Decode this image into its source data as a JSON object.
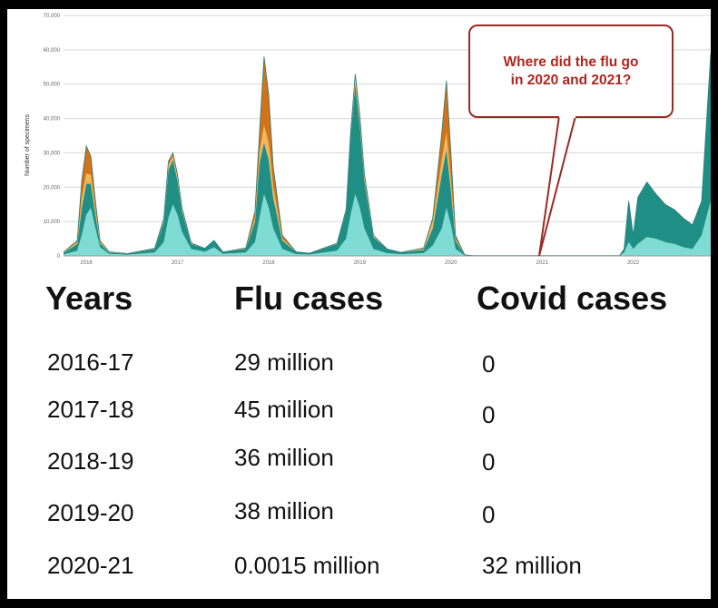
{
  "chart_data": {
    "type": "area",
    "ylabel": "Number of specimens",
    "y_ticks": [
      "70,000",
      "60,000",
      "50,000",
      "40,000",
      "30,000",
      "20,000",
      "10,000",
      "0"
    ],
    "ylim": [
      0,
      70000
    ],
    "x_ticks": [
      "2016",
      "2017",
      "2018",
      "2019",
      "2020",
      "2021",
      "2022"
    ],
    "xlim": [
      2015.8,
      2022.9
    ],
    "grid": true,
    "stacked": true,
    "colors": [
      "#7fdcd4",
      "#1f8f86",
      "#f0b85a",
      "#d47218"
    ],
    "series": [
      {
        "x": [
          2015.8,
          2015.95,
          2016.0,
          2016.05,
          2016.1,
          2016.15,
          2016.2,
          2016.3,
          2016.5,
          2016.8,
          2016.9,
          2016.95,
          2017.0,
          2017.05,
          2017.1,
          2017.2,
          2017.35,
          2017.45,
          2017.55,
          2017.8,
          2017.9,
          2017.95,
          2018.0,
          2018.05,
          2018.1,
          2018.2,
          2018.35,
          2018.5,
          2018.8,
          2018.9,
          2018.95,
          2019.0,
          2019.05,
          2019.1,
          2019.2,
          2019.35,
          2019.5,
          2019.75,
          2019.85,
          2019.95,
          2020.0,
          2020.05,
          2020.1,
          2020.2,
          2020.3,
          2021.9,
          2021.95,
          2022.0,
          2022.05,
          2022.1,
          2022.2,
          2022.3,
          2022.4,
          2022.5,
          2022.6,
          2022.7,
          2022.8,
          2022.9
        ],
        "y": [
          400,
          1500,
          6000,
          12000,
          14000,
          8000,
          2500,
          600,
          350,
          1000,
          4000,
          11000,
          15000,
          12000,
          7000,
          2000,
          1200,
          2500,
          600,
          1000,
          4000,
          11000,
          18000,
          14000,
          8000,
          2000,
          500,
          400,
          1500,
          5000,
          12000,
          18000,
          14000,
          8000,
          2000,
          800,
          500,
          800,
          3000,
          8000,
          14000,
          9000,
          2000,
          150,
          50,
          50,
          1000,
          4000,
          2000,
          3500,
          5500,
          5000,
          4000,
          3500,
          2500,
          2000,
          6000,
          16000
        ]
      },
      {
        "x": [
          2015.8,
          2015.95,
          2016.0,
          2016.05,
          2016.1,
          2016.15,
          2016.2,
          2016.3,
          2016.5,
          2016.8,
          2016.9,
          2016.95,
          2017.0,
          2017.05,
          2017.1,
          2017.2,
          2017.35,
          2017.45,
          2017.55,
          2017.8,
          2017.9,
          2017.95,
          2018.0,
          2018.05,
          2018.1,
          2018.2,
          2018.35,
          2018.5,
          2018.8,
          2018.9,
          2018.95,
          2019.0,
          2019.05,
          2019.1,
          2019.2,
          2019.35,
          2019.5,
          2019.75,
          2019.85,
          2019.95,
          2020.0,
          2020.05,
          2020.1,
          2020.2,
          2020.3,
          2021.9,
          2021.95,
          2022.0,
          2022.05,
          2022.1,
          2022.2,
          2022.3,
          2022.4,
          2022.5,
          2022.6,
          2022.7,
          2022.8,
          2022.9
        ],
        "y": [
          500,
          2000,
          8000,
          9000,
          7000,
          4000,
          1200,
          400,
          250,
          1000,
          6000,
          14000,
          13000,
          10000,
          6000,
          1500,
          1000,
          2000,
          500,
          1000,
          6000,
          16000,
          15000,
          14000,
          9000,
          2500,
          700,
          400,
          2000,
          8000,
          23000,
          32000,
          24000,
          14000,
          3500,
          1200,
          500,
          1000,
          5000,
          16000,
          17000,
          10000,
          2500,
          150,
          50,
          50,
          1000,
          12000,
          4000,
          13500,
          16000,
          13000,
          11000,
          10000,
          8500,
          7000,
          10000,
          43000
        ]
      },
      {
        "x": [
          2015.8,
          2015.95,
          2016.0,
          2016.05,
          2016.1,
          2016.15,
          2016.2,
          2016.3,
          2016.5,
          2016.8,
          2016.9,
          2016.95,
          2017.0,
          2017.05,
          2017.1,
          2017.2,
          2017.35,
          2017.45,
          2017.55,
          2017.8,
          2017.9,
          2017.95,
          2018.0,
          2018.05,
          2018.1,
          2018.2,
          2018.35,
          2018.5,
          2018.8,
          2018.9,
          2018.95,
          2019.0,
          2019.05,
          2019.1,
          2019.2,
          2019.35,
          2019.5,
          2019.75,
          2019.85,
          2019.95,
          2020.0,
          2020.05,
          2020.1,
          2020.2,
          2020.3,
          2021.9,
          2021.95,
          2022.0,
          2022.05,
          2022.1,
          2022.2,
          2022.3,
          2022.4,
          2022.5,
          2022.6,
          2022.7,
          2022.8,
          2022.9
        ],
        "y": [
          100,
          500,
          3000,
          3000,
          2500,
          1500,
          400,
          100,
          50,
          100,
          500,
          1500,
          1000,
          1000,
          500,
          200,
          0,
          0,
          0,
          100,
          1000,
          3000,
          5000,
          5000,
          3000,
          500,
          0,
          0,
          200,
          500,
          1000,
          1500,
          1500,
          1000,
          300,
          0,
          0,
          300,
          2000,
          4000,
          5000,
          3000,
          500,
          0,
          0,
          0,
          0,
          0,
          0,
          0,
          0,
          0,
          0,
          0,
          0,
          0,
          0,
          0
        ]
      },
      {
        "x": [
          2015.8,
          2015.95,
          2016.0,
          2016.05,
          2016.1,
          2016.15,
          2016.2,
          2016.3,
          2016.5,
          2016.8,
          2016.9,
          2016.95,
          2017.0,
          2017.05,
          2017.1,
          2017.2,
          2017.35,
          2017.45,
          2017.55,
          2017.8,
          2017.9,
          2017.95,
          2018.0,
          2018.05,
          2018.1,
          2018.2,
          2018.35,
          2018.5,
          2018.8,
          2018.9,
          2018.95,
          2019.0,
          2019.05,
          2019.1,
          2019.2,
          2019.35,
          2019.5,
          2019.75,
          2019.85,
          2019.95,
          2020.0,
          2020.05,
          2020.1,
          2020.2,
          2020.3,
          2021.9,
          2021.95,
          2022.0,
          2022.05,
          2022.1,
          2022.2,
          2022.3,
          2022.4,
          2022.5,
          2022.6,
          2022.7,
          2022.8,
          2022.9
        ],
        "y": [
          100,
          500,
          5000,
          8000,
          5500,
          2500,
          400,
          100,
          50,
          100,
          500,
          1000,
          1000,
          800,
          500,
          100,
          0,
          0,
          0,
          200,
          2000,
          6000,
          20000,
          14000,
          6000,
          1000,
          0,
          0,
          0,
          0,
          0,
          1500,
          1500,
          1000,
          200,
          0,
          0,
          200,
          1000,
          8000,
          15000,
          8000,
          1000,
          0,
          0,
          0,
          0,
          0,
          0,
          0,
          0,
          0,
          0,
          0,
          0,
          0,
          0,
          0
        ]
      }
    ],
    "annotation": {
      "text_line1": "Where did the flu go",
      "text_line2": "in 2020 and 2021?",
      "points_to_x": 2021.0,
      "points_to_y": 0
    }
  },
  "table": {
    "headers": [
      "Years",
      "Flu cases",
      "Covid cases"
    ],
    "rows": [
      [
        "2016-17",
        "29 million",
        "0"
      ],
      [
        "2017-18",
        "45 million",
        "0"
      ],
      [
        "2018-19",
        "36 million",
        "0"
      ],
      [
        "2019-20",
        "38 million",
        "0"
      ],
      [
        "2020-21",
        "0.0015 million",
        "32 million"
      ]
    ]
  }
}
